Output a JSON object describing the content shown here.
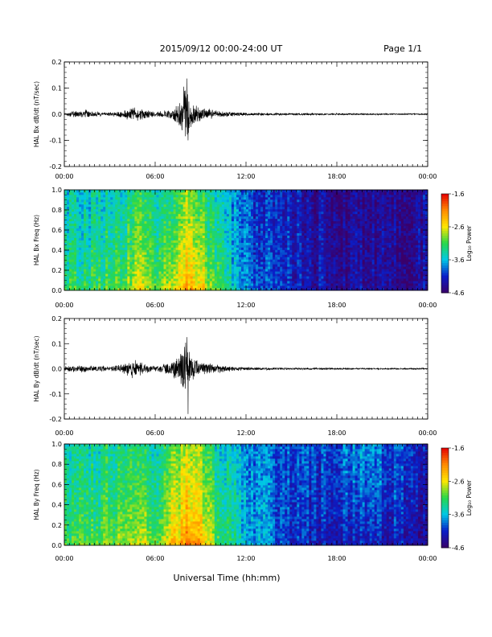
{
  "header": {
    "title": "2015/09/12  00:00-24:00 UT",
    "page": "Page 1/1"
  },
  "xaxis": {
    "label": "Universal Time (hh:mm)",
    "ticks": [
      "00:00",
      "06:00",
      "12:00",
      "18:00",
      "00:00"
    ],
    "range_hours": [
      0,
      24
    ]
  },
  "colors": {
    "trace": "#000000",
    "colormap": [
      "#3a006a",
      "#0a1ec8",
      "#00c8e6",
      "#28d84a",
      "#ffe600",
      "#ff8a00",
      "#e60000"
    ]
  },
  "chart_data": [
    {
      "type": "line",
      "panel": "bx-dbdt",
      "ylabel": "HAL Bx dB/dt (nT/sec)",
      "ylim": [
        -0.2,
        0.2
      ],
      "yticks": [
        "0.2",
        "0.1",
        "0.0",
        "-0.1",
        "-0.2"
      ],
      "x": [
        0,
        1,
        1.5,
        2,
        3,
        4,
        4.5,
        5,
        6,
        7,
        7.6,
        8.0,
        8.2,
        8.4,
        9,
        10,
        11,
        12,
        14,
        16,
        18,
        20,
        22,
        24
      ],
      "envelope": [
        0.006,
        0.015,
        0.02,
        0.01,
        0.008,
        0.02,
        0.03,
        0.025,
        0.01,
        0.02,
        0.05,
        0.13,
        0.08,
        0.05,
        0.03,
        0.015,
        0.01,
        0.006,
        0.005,
        0.004,
        0.004,
        0.003,
        0.003,
        0.003
      ],
      "min_spike": -0.1
    },
    {
      "type": "heatmap",
      "panel": "bx-spectrogram",
      "ylabel": "HAL Bx Freq (Hz)",
      "ylim": [
        0.0,
        1.0
      ],
      "yticks": [
        "1.0",
        "0.8",
        "0.6",
        "0.4",
        "0.2",
        "0.0"
      ],
      "colorbar": {
        "label": "Log₁₀ Power",
        "range": [
          -4.6,
          -1.6
        ],
        "ticks": [
          "-1.6",
          "-2.6",
          "-3.6",
          "-4.6"
        ]
      },
      "x_hours": [
        0,
        2,
        4,
        5,
        6,
        8,
        9,
        10,
        12,
        14,
        16,
        18,
        20,
        22,
        24
      ],
      "log_power_lowfreq": [
        -3.2,
        -3.1,
        -2.9,
        -2.6,
        -3.0,
        -2.2,
        -2.4,
        -3.0,
        -3.8,
        -4.0,
        -4.2,
        -4.3,
        -4.3,
        -4.4,
        -4.4
      ],
      "log_power_highfreq": [
        -3.6,
        -3.5,
        -3.4,
        -3.2,
        -3.5,
        -2.9,
        -3.1,
        -3.5,
        -4.0,
        -4.1,
        -4.3,
        -4.4,
        -4.4,
        -4.4,
        -4.3
      ]
    },
    {
      "type": "line",
      "panel": "by-dbdt",
      "ylabel": "HAL By dB/dt (nT/sec)",
      "ylim": [
        -0.2,
        0.2
      ],
      "yticks": [
        "0.2",
        "0.1",
        "0.0",
        "-0.1",
        "-0.2"
      ],
      "x": [
        0,
        1,
        2,
        3,
        4,
        4.5,
        5,
        6,
        7,
        7.6,
        8.0,
        8.2,
        8.4,
        9,
        10,
        11,
        12,
        14,
        16,
        18,
        20,
        22,
        24
      ],
      "envelope": [
        0.01,
        0.015,
        0.012,
        0.012,
        0.025,
        0.04,
        0.03,
        0.012,
        0.025,
        0.06,
        0.12,
        0.09,
        0.06,
        0.03,
        0.02,
        0.01,
        0.007,
        0.005,
        0.004,
        0.004,
        0.003,
        0.003,
        0.003
      ],
      "min_spike": -0.18
    },
    {
      "type": "heatmap",
      "panel": "by-spectrogram",
      "ylabel": "HAL By Freq (Hz)",
      "ylim": [
        0.0,
        1.0
      ],
      "yticks": [
        "1.0",
        "0.8",
        "0.6",
        "0.4",
        "0.2",
        "0.0"
      ],
      "colorbar": {
        "label": "Log₁₀ Power",
        "range": [
          -4.6,
          -1.6
        ],
        "ticks": [
          "-1.6",
          "-2.6",
          "-3.6",
          "-4.6"
        ]
      },
      "x_hours": [
        0,
        2,
        4,
        5,
        6,
        8,
        9,
        10,
        12,
        14,
        16,
        18,
        20,
        22,
        24
      ],
      "log_power_lowfreq": [
        -3.1,
        -3.0,
        -2.8,
        -2.5,
        -2.9,
        -2.1,
        -2.3,
        -2.9,
        -3.6,
        -3.9,
        -4.2,
        -4.3,
        -4.2,
        -4.3,
        -4.4
      ],
      "log_power_highfreq": [
        -3.5,
        -3.4,
        -3.3,
        -3.1,
        -3.4,
        -2.8,
        -3.0,
        -3.4,
        -3.8,
        -3.9,
        -4.0,
        -4.0,
        -3.7,
        -4.0,
        -4.2
      ]
    }
  ]
}
